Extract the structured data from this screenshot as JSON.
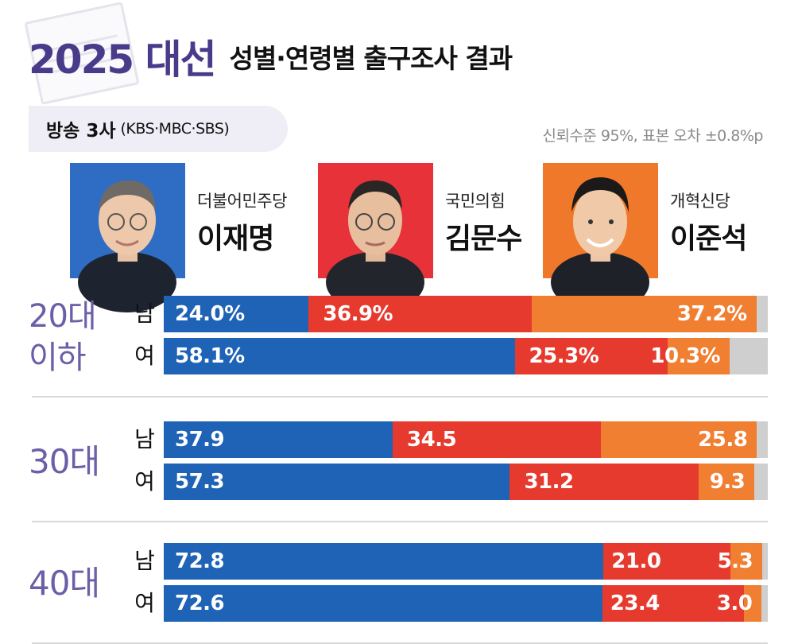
{
  "header": {
    "title_main": "2025 대선",
    "title_sub": "성별·연령별 출구조사 결과",
    "source_main": "방송 3사",
    "source_paren": "(KBS·MBC·SBS)",
    "note": "신뢰수준 95%, 표본 오차 ±0.8%p"
  },
  "candidates": [
    {
      "party": "더불어민주당",
      "name": "이재명",
      "color": "#1e63b5",
      "bg": "#2f6cc4"
    },
    {
      "party": "국민의힘",
      "name": "김문수",
      "color": "#e63a2e",
      "bg": "#e8323a"
    },
    {
      "party": "개혁신당",
      "name": "이준석",
      "color": "#f07f32",
      "bg": "#f0782a"
    }
  ],
  "colors": {
    "remainder": "#cfcfcf",
    "age_label": "#6a5fa8"
  },
  "chart_data": {
    "type": "bar",
    "orientation": "horizontal-stacked",
    "series_names": [
      "더불어민주당 이재명",
      "국민의힘 김문수",
      "개혁신당 이준석"
    ],
    "groups": [
      {
        "age_label": "20대 이하",
        "rows": [
          {
            "gender": "남",
            "values": [
              24.0,
              36.9,
              37.2
            ],
            "labels": [
              "24.0%",
              "36.9%",
              "37.2%"
            ]
          },
          {
            "gender": "여",
            "values": [
              58.1,
              25.3,
              10.3
            ],
            "labels": [
              "58.1%",
              "25.3%",
              "10.3%"
            ]
          }
        ]
      },
      {
        "age_label": "30대",
        "rows": [
          {
            "gender": "남",
            "values": [
              37.9,
              34.5,
              25.8
            ],
            "labels": [
              "37.9",
              "34.5",
              "25.8"
            ]
          },
          {
            "gender": "여",
            "values": [
              57.3,
              31.2,
              9.3
            ],
            "labels": [
              "57.3",
              "31.2",
              "9.3"
            ]
          }
        ]
      },
      {
        "age_label": "40대",
        "rows": [
          {
            "gender": "남",
            "values": [
              72.8,
              21.0,
              5.3
            ],
            "labels": [
              "72.8",
              "21.0",
              "5.3"
            ]
          },
          {
            "gender": "여",
            "values": [
              72.6,
              23.4,
              3.0
            ],
            "labels": [
              "72.6",
              "23.4",
              "3.0"
            ]
          }
        ]
      }
    ],
    "xlim": [
      0,
      100
    ]
  }
}
